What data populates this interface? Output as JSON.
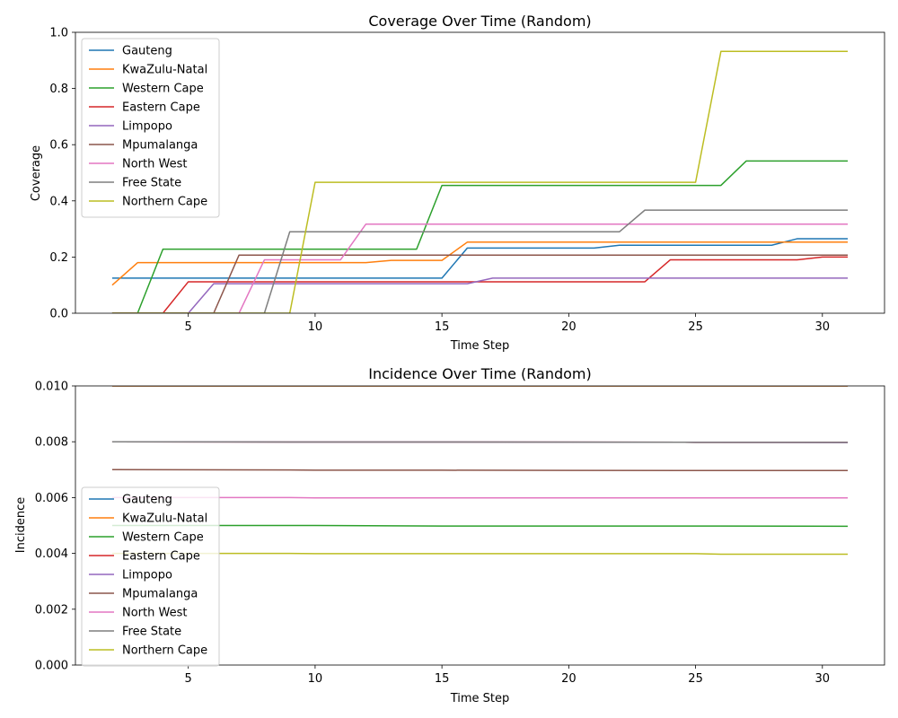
{
  "chart_data": [
    {
      "type": "line",
      "title": "Coverage Over Time (Random)",
      "xlabel": "Time Step",
      "ylabel": "Coverage",
      "xlim": [
        0.55,
        32.45
      ],
      "ylim": [
        0,
        1
      ],
      "xticks": [
        5,
        10,
        15,
        20,
        25,
        30
      ],
      "yticks": [
        0.0,
        0.2,
        0.4,
        0.6,
        0.8,
        1.0
      ],
      "ytick_labels": [
        "0.0",
        "0.2",
        "0.4",
        "0.6",
        "0.8",
        "1.0"
      ],
      "legend_position": "upper left",
      "x": [
        2,
        3,
        4,
        5,
        6,
        7,
        8,
        9,
        10,
        11,
        12,
        13,
        14,
        15,
        16,
        17,
        18,
        19,
        20,
        21,
        22,
        23,
        24,
        25,
        26,
        27,
        28,
        29,
        30,
        31
      ],
      "series": [
        {
          "name": "Gauteng",
          "color": "#1f77b4",
          "values": [
            0.125,
            0.125,
            0.125,
            0.125,
            0.125,
            0.125,
            0.125,
            0.125,
            0.125,
            0.125,
            0.125,
            0.125,
            0.125,
            0.125,
            0.232,
            0.232,
            0.232,
            0.232,
            0.232,
            0.232,
            0.242,
            0.242,
            0.242,
            0.242,
            0.242,
            0.242,
            0.242,
            0.265,
            0.265,
            0.265
          ]
        },
        {
          "name": "KwaZulu-Natal",
          "color": "#ff7f0e",
          "values": [
            0.1,
            0.18,
            0.18,
            0.18,
            0.18,
            0.18,
            0.18,
            0.18,
            0.18,
            0.18,
            0.18,
            0.188,
            0.188,
            0.188,
            0.253,
            0.253,
            0.253,
            0.253,
            0.253,
            0.253,
            0.253,
            0.253,
            0.253,
            0.253,
            0.253,
            0.253,
            0.253,
            0.253,
            0.253,
            0.253
          ]
        },
        {
          "name": "Western Cape",
          "color": "#2ca02c",
          "values": [
            0,
            0,
            0.228,
            0.228,
            0.228,
            0.228,
            0.228,
            0.228,
            0.228,
            0.228,
            0.228,
            0.228,
            0.228,
            0.455,
            0.455,
            0.455,
            0.455,
            0.455,
            0.455,
            0.455,
            0.455,
            0.455,
            0.455,
            0.455,
            0.455,
            0.542,
            0.542,
            0.542,
            0.542,
            0.542
          ]
        },
        {
          "name": "Eastern Cape",
          "color": "#d62728",
          "values": [
            0,
            0,
            0,
            0.112,
            0.112,
            0.112,
            0.112,
            0.112,
            0.112,
            0.112,
            0.112,
            0.112,
            0.112,
            0.112,
            0.112,
            0.112,
            0.112,
            0.112,
            0.112,
            0.112,
            0.112,
            0.112,
            0.19,
            0.19,
            0.19,
            0.19,
            0.19,
            0.19,
            0.2,
            0.2
          ]
        },
        {
          "name": "Limpopo",
          "color": "#9467bd",
          "values": [
            0,
            0,
            0,
            0,
            0.105,
            0.105,
            0.105,
            0.105,
            0.105,
            0.105,
            0.105,
            0.105,
            0.105,
            0.105,
            0.105,
            0.125,
            0.125,
            0.125,
            0.125,
            0.125,
            0.125,
            0.125,
            0.125,
            0.125,
            0.125,
            0.125,
            0.125,
            0.125,
            0.125,
            0.125
          ]
        },
        {
          "name": "Mpumalanga",
          "color": "#8c564b",
          "values": [
            0,
            0,
            0,
            0,
            0,
            0.207,
            0.207,
            0.207,
            0.207,
            0.207,
            0.207,
            0.207,
            0.207,
            0.207,
            0.207,
            0.207,
            0.207,
            0.207,
            0.207,
            0.207,
            0.207,
            0.207,
            0.207,
            0.207,
            0.207,
            0.207,
            0.207,
            0.207,
            0.207,
            0.207
          ]
        },
        {
          "name": "North West",
          "color": "#e377c2",
          "values": [
            0,
            0,
            0,
            0,
            0,
            0,
            0.19,
            0.19,
            0.19,
            0.19,
            0.317,
            0.317,
            0.317,
            0.317,
            0.317,
            0.317,
            0.317,
            0.317,
            0.317,
            0.317,
            0.317,
            0.317,
            0.317,
            0.317,
            0.317,
            0.317,
            0.317,
            0.317,
            0.317,
            0.317
          ]
        },
        {
          "name": "Free State",
          "color": "#7f7f7f",
          "values": [
            0,
            0,
            0,
            0,
            0,
            0,
            0,
            0.29,
            0.29,
            0.29,
            0.29,
            0.29,
            0.29,
            0.29,
            0.29,
            0.29,
            0.29,
            0.29,
            0.29,
            0.29,
            0.29,
            0.367,
            0.367,
            0.367,
            0.367,
            0.367,
            0.367,
            0.367,
            0.367,
            0.367
          ]
        },
        {
          "name": "Northern Cape",
          "color": "#bcbd22",
          "values": [
            0,
            0,
            0,
            0,
            0,
            0,
            0,
            0,
            0.466,
            0.466,
            0.466,
            0.466,
            0.466,
            0.466,
            0.466,
            0.466,
            0.466,
            0.466,
            0.466,
            0.466,
            0.466,
            0.466,
            0.466,
            0.466,
            0.932,
            0.932,
            0.932,
            0.932,
            0.932,
            0.932
          ]
        }
      ]
    },
    {
      "type": "line",
      "title": "Incidence Over Time (Random)",
      "xlabel": "Time Step",
      "ylabel": "Incidence",
      "xlim": [
        0.55,
        32.45
      ],
      "ylim": [
        0,
        0.01
      ],
      "xticks": [
        5,
        10,
        15,
        20,
        25,
        30
      ],
      "yticks": [
        0.0,
        0.002,
        0.004,
        0.006,
        0.008,
        0.01
      ],
      "ytick_labels": [
        "0.000",
        "0.002",
        "0.004",
        "0.006",
        "0.008",
        "0.010"
      ],
      "legend_position": "lower left",
      "x": [
        2,
        9,
        10,
        15,
        25,
        26,
        31
      ],
      "series": [
        {
          "name": "Gauteng",
          "color": "#1f77b4",
          "values": [
            0.01,
            0.01,
            0.01,
            0.01,
            0.01,
            0.01,
            0.01
          ]
        },
        {
          "name": "KwaZulu-Natal",
          "color": "#ff7f0e",
          "values": [
            0.01,
            0.01,
            0.01,
            0.01,
            0.01,
            0.01,
            0.01
          ]
        },
        {
          "name": "Western Cape",
          "color": "#2ca02c",
          "values": [
            0.005,
            0.005,
            0.005,
            0.00498,
            0.00498,
            0.00498,
            0.00497
          ]
        },
        {
          "name": "Eastern Cape",
          "color": "#d62728",
          "values": [
            0.008,
            0.00799,
            0.00799,
            0.00799,
            0.00798,
            0.00798,
            0.00798
          ]
        },
        {
          "name": "Limpopo",
          "color": "#9467bd",
          "values": [
            0.008,
            0.00799,
            0.00799,
            0.00799,
            0.00798,
            0.00798,
            0.00797
          ]
        },
        {
          "name": "Mpumalanga",
          "color": "#8c564b",
          "values": [
            0.007,
            0.00699,
            0.00698,
            0.00698,
            0.00697,
            0.00697,
            0.00697
          ]
        },
        {
          "name": "North West",
          "color": "#e377c2",
          "values": [
            0.006,
            0.006,
            0.00599,
            0.00599,
            0.00599,
            0.00599,
            0.00599
          ]
        },
        {
          "name": "Free State",
          "color": "#7f7f7f",
          "values": [
            0.008,
            0.00799,
            0.00799,
            0.00799,
            0.00798,
            0.00798,
            0.00798
          ]
        },
        {
          "name": "Northern Cape",
          "color": "#bcbd22",
          "values": [
            0.004,
            0.004,
            0.00399,
            0.00399,
            0.00399,
            0.00397,
            0.00397
          ]
        }
      ]
    }
  ]
}
